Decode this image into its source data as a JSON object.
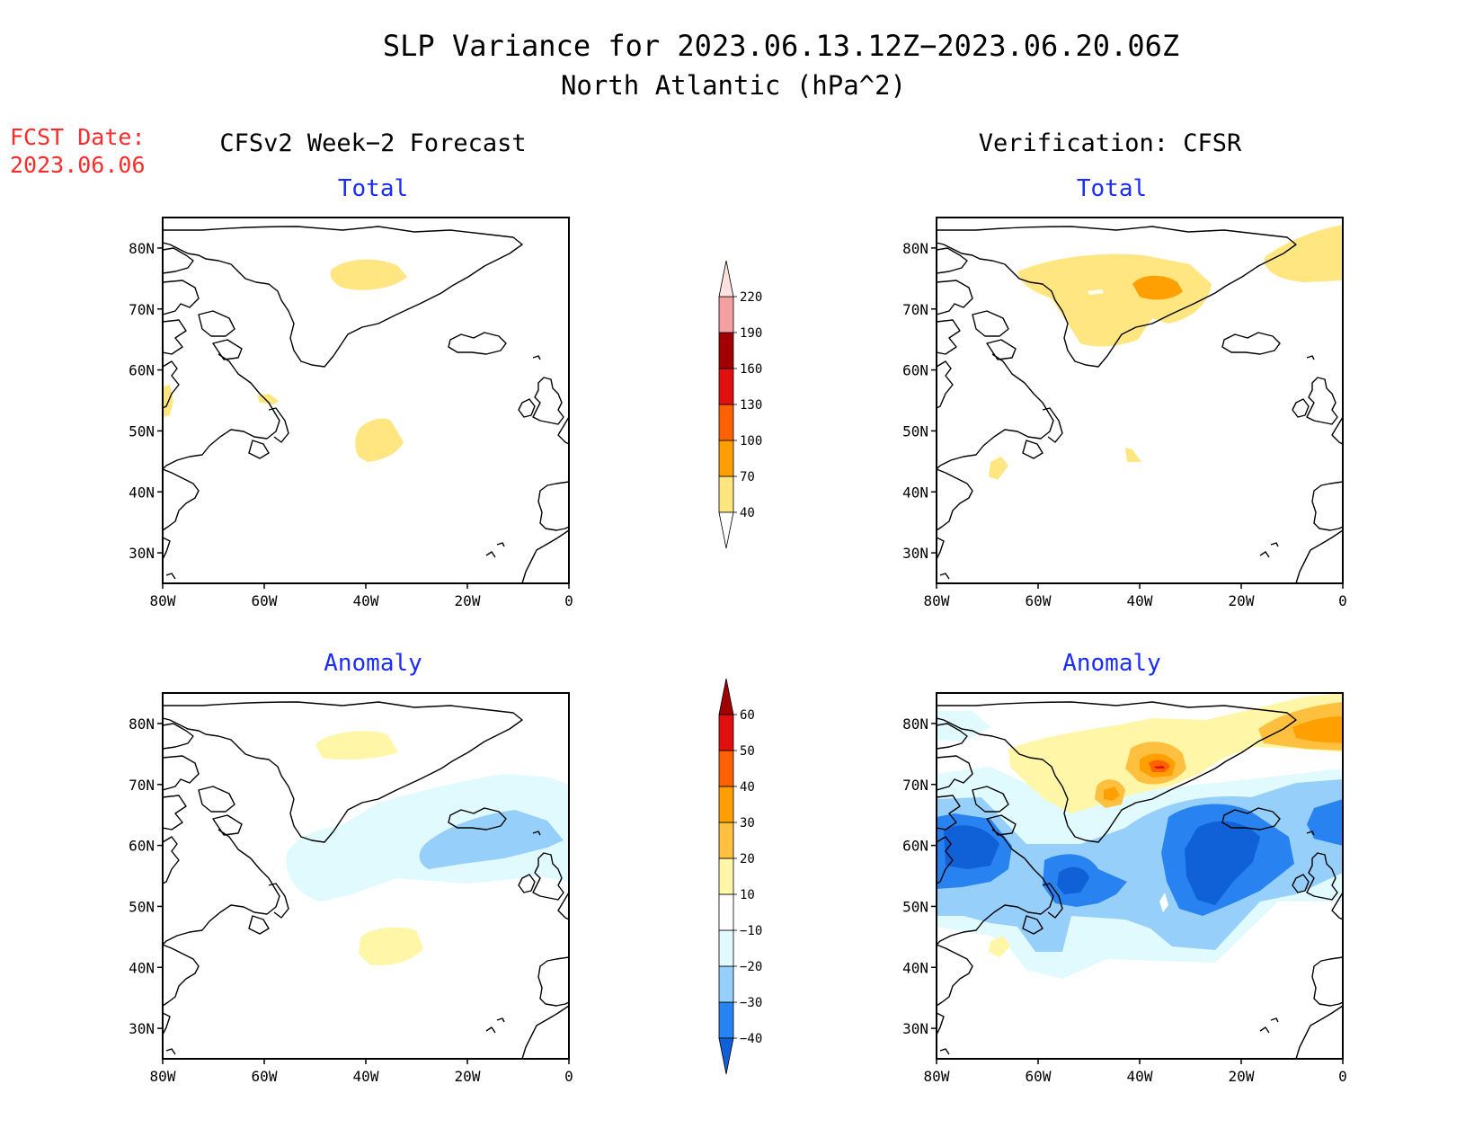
{
  "title": {
    "line1": "SLP Variance for 2023.06.13.12Z−2023.06.20.06Z",
    "line2": "North Atlantic (hPa^2)"
  },
  "fcst": {
    "label": "FCST Date:",
    "date": "2023.06.06"
  },
  "columns": {
    "left": "CFSv2 Week−2 Forecast",
    "right": "Verification: CFSR"
  },
  "panels": [
    {
      "id": "forecast-total",
      "subtitle": "Total"
    },
    {
      "id": "verification-total",
      "subtitle": "Total"
    },
    {
      "id": "forecast-anomaly",
      "subtitle": "Anomaly"
    },
    {
      "id": "verification-anomaly",
      "subtitle": "Anomaly"
    }
  ],
  "axes": {
    "lat_ticks": [
      "30N",
      "40N",
      "50N",
      "60N",
      "70N",
      "80N"
    ],
    "lon_ticks": [
      "80W",
      "60W",
      "40W",
      "20W",
      "0"
    ],
    "lat_range": [
      25,
      85
    ],
    "lon_range": [
      -80,
      0
    ]
  },
  "colorbars": {
    "total": {
      "labels": [
        "40",
        "70",
        "100",
        "130",
        "160",
        "190",
        "220"
      ],
      "colors": [
        "#ffe680",
        "#ffa000",
        "#ff6000",
        "#e01010",
        "#a00000",
        "#f2a0a0",
        "#fde2e0"
      ]
    },
    "anomaly": {
      "labels": [
        "−40",
        "−30",
        "−20",
        "−10",
        "10",
        "20",
        "30",
        "40",
        "50",
        "60"
      ],
      "colors": [
        "#1060d8",
        "#2882f0",
        "#96d0fa",
        "#e0fafd",
        "#ffffff",
        "#fff6a8",
        "#ffc040",
        "#ffa000",
        "#ff6000",
        "#e01010",
        "#a00000"
      ]
    }
  }
}
